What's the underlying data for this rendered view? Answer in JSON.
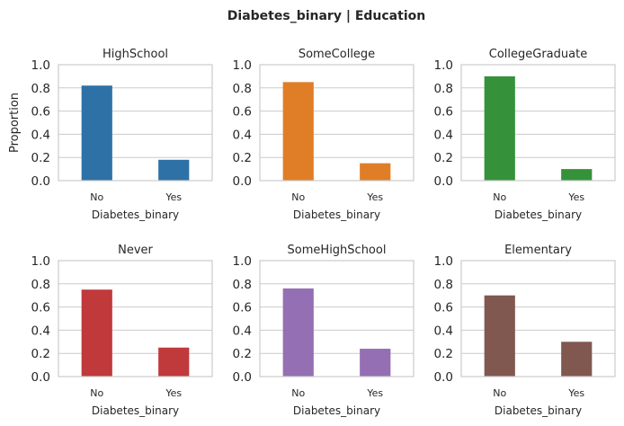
{
  "chart_data": {
    "type": "bar",
    "title": "Diabetes_binary | Education",
    "xlabel": "Diabetes_binary",
    "ylabel": "Proportion",
    "categories": [
      "No",
      "Yes"
    ],
    "ylim": [
      0,
      1.0
    ],
    "yticks": [
      "0.0",
      "0.2",
      "0.4",
      "0.6",
      "0.8",
      "1.0"
    ],
    "grid": true,
    "panels": [
      {
        "title": "HighSchool",
        "values": [
          0.82,
          0.18
        ],
        "color": "#2e71a6"
      },
      {
        "title": "SomeCollege",
        "values": [
          0.85,
          0.15
        ],
        "color": "#e07e27"
      },
      {
        "title": "CollegeGraduate",
        "values": [
          0.9,
          0.1
        ],
        "color": "#36923a"
      },
      {
        "title": "Never",
        "values": [
          0.75,
          0.25
        ],
        "color": "#c0393b"
      },
      {
        "title": "SomeHighSchool",
        "values": [
          0.76,
          0.24
        ],
        "color": "#946fb3"
      },
      {
        "title": "Elementary",
        "values": [
          0.7,
          0.3
        ],
        "color": "#805850"
      }
    ]
  }
}
